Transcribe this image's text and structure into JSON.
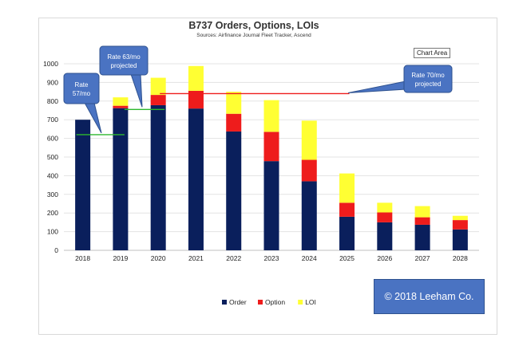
{
  "chart_data": {
    "type": "bar",
    "stacked": true,
    "title": "B737 Orders, Options, LOIs",
    "subtitle": "Sources: Airfinance Journal Fleet Tracker, Ascend",
    "categories": [
      "2018",
      "2019",
      "2020",
      "2021",
      "2022",
      "2023",
      "2024",
      "2025",
      "2026",
      "2027",
      "2028"
    ],
    "series": [
      {
        "name": "Order",
        "color": "#0a1f5c",
        "values": [
          700,
          762,
          778,
          760,
          637,
          478,
          370,
          180,
          150,
          137,
          112
        ]
      },
      {
        "name": "Option",
        "color": "#ee1c1c",
        "values": [
          0,
          13,
          55,
          95,
          95,
          157,
          115,
          75,
          53,
          40,
          50
        ]
      },
      {
        "name": "LOI",
        "color": "#ffff33",
        "values": [
          0,
          45,
          92,
          133,
          118,
          170,
          210,
          157,
          52,
          60,
          23
        ]
      }
    ],
    "ylim": [
      0,
      1000
    ],
    "yticks": [
      0,
      100,
      200,
      300,
      400,
      500,
      600,
      700,
      800,
      900,
      1000
    ],
    "grid": true,
    "legend_position": "bottom",
    "reference_lines": [
      {
        "label": "Rate 57/mo",
        "value": 620,
        "color": "#2eb82e"
      },
      {
        "label": "Rate 63/mo projected",
        "value": 755,
        "color": "#2eb82e"
      },
      {
        "label": "Rate 70/mo projected",
        "value": 840,
        "color": "#ee1c1c"
      }
    ],
    "callouts": [
      {
        "line1": "Rate",
        "line2": "57/mo"
      },
      {
        "line1": "Rate 63/mo",
        "line2": "projected"
      },
      {
        "line1": "Rate 70/mo",
        "line2": "projected"
      }
    ]
  },
  "tooltip_label": "Chart Area",
  "copyright": "© 2018 Leeham Co."
}
